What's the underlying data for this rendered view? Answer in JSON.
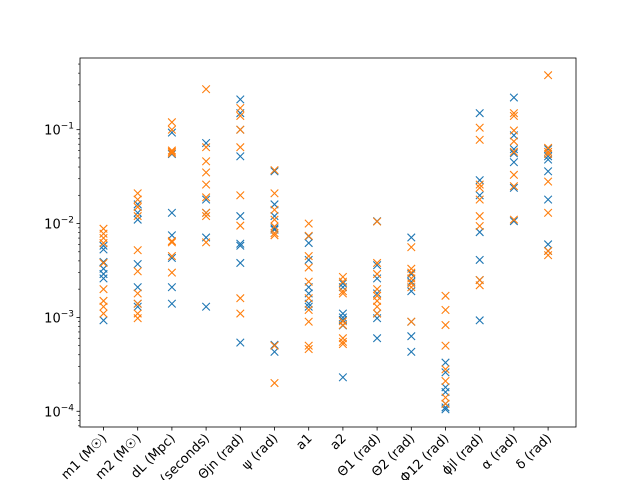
{
  "chart_data": {
    "type": "scatter",
    "yscale": "log",
    "ylim": [
      6.8e-05,
      0.58
    ],
    "categories": [
      "m1 (M☉)",
      "m2 (M☉)",
      "dL (Mpc)",
      "tc (seconds)",
      "Θjn (rad)",
      "ψ (rad)",
      "a1",
      "a2",
      "Θ1 (rad)",
      "Θ2 (rad)",
      "Φ12 (rad)",
      "ϕjl (rad)",
      "α (rad)",
      "δ (rad)"
    ],
    "y_ticks": [
      {
        "value": 0.0001,
        "base": "10",
        "exp": "−4"
      },
      {
        "value": 0.001,
        "base": "10",
        "exp": "−3"
      },
      {
        "value": 0.01,
        "base": "10",
        "exp": "−2"
      },
      {
        "value": 0.1,
        "base": "10",
        "exp": "−1"
      }
    ],
    "series_colors": [
      "#1f77b4",
      "#ff7f0e"
    ],
    "series": [
      {
        "values": [
          [
            0.0058,
            0.0053,
            0.0039,
            0.0033,
            0.0029,
            0.0026,
            0.00093
          ],
          [
            0.016,
            0.013,
            0.011,
            0.0037,
            0.0021,
            0.0014,
            0.0013
          ],
          [
            0.093,
            0.055,
            0.013,
            0.0075,
            0.0043,
            0.0021,
            0.0014
          ],
          [
            0.072,
            0.018,
            0.013,
            0.0071,
            0.0013
          ],
          [
            0.21,
            0.15,
            0.1,
            0.052,
            0.012,
            0.0061,
            0.0058,
            0.0038,
            0.00054
          ],
          [
            0.036,
            0.016,
            0.012,
            0.0089,
            0.0086,
            0.00051,
            0.00043
          ],
          [
            0.0073,
            0.0062,
            0.0041,
            0.0021,
            0.0018,
            0.0014,
            0.0013
          ],
          [
            0.0023,
            0.0021,
            0.0011,
            0.001,
            0.00094,
            0.00082,
            0.00023
          ],
          [
            0.0106,
            0.0036,
            0.0026,
            0.0018,
            0.0011,
            0.00098,
            0.0006
          ],
          [
            0.0071,
            0.0029,
            0.0024,
            0.0019,
            0.0009,
            0.00063,
            0.00043
          ],
          [
            0.00033,
            0.00026,
            0.00018,
            0.00016,
            0.00012,
            0.00011,
            0.000105
          ],
          [
            0.15,
            0.029,
            0.02,
            0.0081,
            0.0041,
            0.0025,
            0.00093
          ],
          [
            0.22,
            0.087,
            0.062,
            0.056,
            0.045,
            0.024,
            0.0106
          ],
          [
            0.062,
            0.052,
            0.048,
            0.036,
            0.018,
            0.006,
            0.0051
          ]
        ]
      },
      {
        "values": [
          [
            0.0088,
            0.0078,
            0.007,
            0.0062,
            0.0038,
            0.002,
            0.0015,
            0.0013,
            0.0011
          ],
          [
            0.021,
            0.018,
            0.015,
            0.012,
            0.0052,
            0.0031,
            0.0018,
            0.0014,
            0.0011,
            0.00098
          ],
          [
            0.12,
            0.1,
            0.06,
            0.058,
            0.056,
            0.0065,
            0.0063,
            0.0045,
            0.003
          ],
          [
            0.27,
            0.065,
            0.046,
            0.035,
            0.026,
            0.019,
            0.013,
            0.012,
            0.0063
          ],
          [
            0.17,
            0.14,
            0.1,
            0.065,
            0.02,
            0.0095,
            0.0016,
            0.0011
          ],
          [
            0.037,
            0.021,
            0.014,
            0.011,
            0.0093,
            0.0079,
            0.0075,
            0.0005,
            0.0002
          ],
          [
            0.01,
            0.0074,
            0.0045,
            0.0034,
            0.0024,
            0.0016,
            0.0012,
            0.0009,
            0.0005,
            0.00046
          ],
          [
            0.0027,
            0.0024,
            0.0019,
            0.0018,
            0.00091,
            0.00083,
            0.0006,
            0.00055,
            0.00052
          ],
          [
            0.0105,
            0.0038,
            0.0029,
            0.002,
            0.0017,
            0.0015,
            0.0013,
            0.0011
          ],
          [
            0.0056,
            0.0033,
            0.003,
            0.0026,
            0.0023,
            0.0021,
            0.0009
          ],
          [
            0.0017,
            0.0012,
            0.00083,
            0.0005,
            0.00028,
            0.00021,
            0.00014,
            0.00012
          ],
          [
            0.105,
            0.078,
            0.026,
            0.024,
            0.018,
            0.012,
            0.0094,
            0.0025,
            0.0022
          ],
          [
            0.15,
            0.14,
            0.098,
            0.075,
            0.058,
            0.033,
            0.025,
            0.011
          ],
          [
            0.38,
            0.064,
            0.058,
            0.055,
            0.028,
            0.013,
            0.0051,
            0.0046
          ]
        ]
      }
    ]
  }
}
